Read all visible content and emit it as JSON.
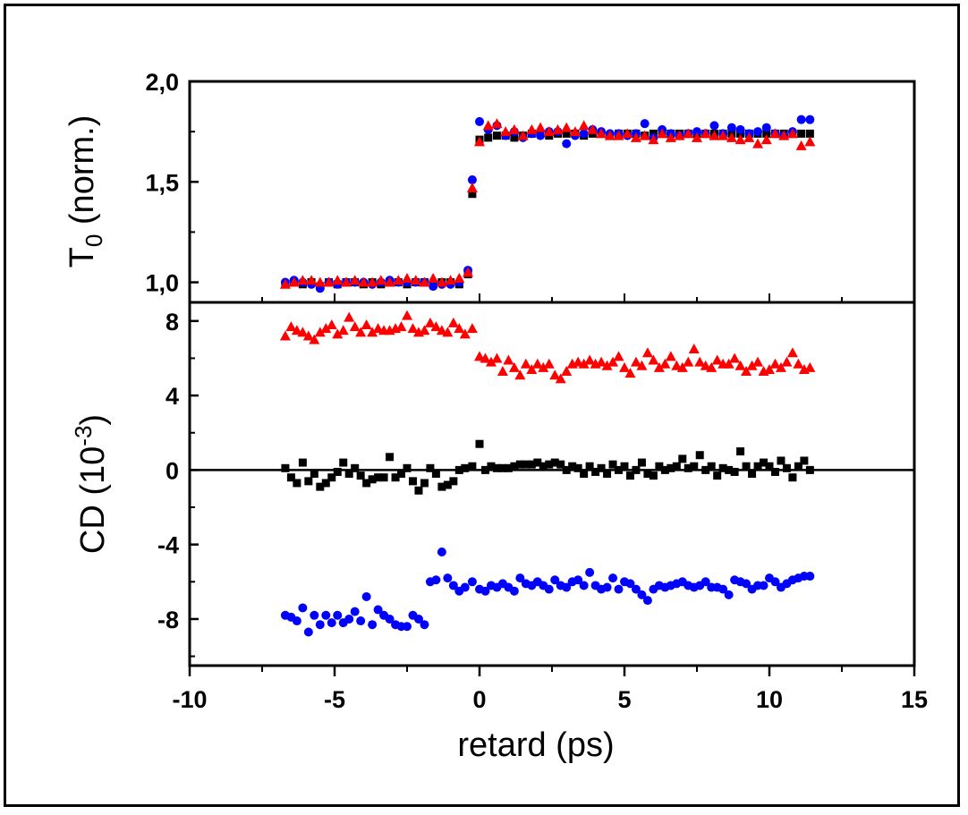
{
  "chart_data": [
    {
      "type": "scatter",
      "panel": "top",
      "ylabel": "T",
      "ylabel_sub": "0",
      "ylabel_rest": " (norm.)",
      "xlim": [
        -10,
        15
      ],
      "ylim": [
        0.9,
        2.0
      ],
      "yticks": [
        1.0,
        1.5,
        2.0
      ],
      "ytick_labels": [
        "1,0",
        "1,5",
        "2,0"
      ],
      "colors": {
        "black": "#000000",
        "blue": "#0000ff",
        "red": "#ff0000"
      },
      "series": [
        {
          "color": "#000000",
          "marker": "square",
          "x": [
            -6.7,
            -6.4,
            -6.1,
            -5.8,
            -5.5,
            -5.2,
            -4.9,
            -4.6,
            -4.3,
            -4.0,
            -3.7,
            -3.4,
            -3.1,
            -2.8,
            -2.5,
            -2.2,
            -1.9,
            -1.6,
            -1.3,
            -1.0,
            -0.7,
            -0.4,
            -0.25,
            0.0,
            0.3,
            0.6,
            0.9,
            1.2,
            1.5,
            1.8,
            2.1,
            2.4,
            2.7,
            3.0,
            3.3,
            3.6,
            3.9,
            4.2,
            4.5,
            4.8,
            5.1,
            5.4,
            5.7,
            6.0,
            6.3,
            6.6,
            6.9,
            7.2,
            7.5,
            7.8,
            8.1,
            8.4,
            8.7,
            9.0,
            9.3,
            9.6,
            9.9,
            10.2,
            10.5,
            10.8,
            11.1,
            11.4
          ],
          "y": [
            0.99,
            1.0,
            0.99,
            1.0,
            0.98,
            1.0,
            0.99,
            1.0,
            1.0,
            0.99,
            1.0,
            0.99,
            1.0,
            1.0,
            0.99,
            1.0,
            1.0,
            0.99,
            1.0,
            1.0,
            0.99,
            1.04,
            1.44,
            1.71,
            1.72,
            1.73,
            1.73,
            1.72,
            1.73,
            1.74,
            1.74,
            1.73,
            1.74,
            1.74,
            1.74,
            1.73,
            1.74,
            1.74,
            1.73,
            1.74,
            1.74,
            1.74,
            1.73,
            1.74,
            1.74,
            1.74,
            1.74,
            1.74,
            1.74,
            1.74,
            1.74,
            1.74,
            1.74,
            1.74,
            1.74,
            1.74,
            1.74,
            1.74,
            1.74,
            1.74,
            1.74,
            1.74
          ]
        },
        {
          "color": "#0000ff",
          "marker": "circle",
          "x": [
            -6.7,
            -6.4,
            -6.1,
            -5.8,
            -5.5,
            -5.2,
            -4.9,
            -4.6,
            -4.3,
            -4.0,
            -3.7,
            -3.4,
            -3.1,
            -2.8,
            -2.5,
            -2.2,
            -1.9,
            -1.6,
            -1.3,
            -1.0,
            -0.7,
            -0.4,
            -0.25,
            0.0,
            0.3,
            0.6,
            0.9,
            1.2,
            1.5,
            1.8,
            2.1,
            2.4,
            2.7,
            3.0,
            3.3,
            3.6,
            3.9,
            4.2,
            4.5,
            4.8,
            5.1,
            5.4,
            5.7,
            6.0,
            6.3,
            6.6,
            6.9,
            7.2,
            7.5,
            7.8,
            8.1,
            8.4,
            8.7,
            9.0,
            9.3,
            9.6,
            9.9,
            10.2,
            10.5,
            10.8,
            11.1,
            11.4
          ],
          "y": [
            1.0,
            1.01,
            1.0,
            0.99,
            0.97,
            1.0,
            0.99,
            1.0,
            1.0,
            1.0,
            0.99,
            1.0,
            1.01,
            1.0,
            1.0,
            1.0,
            1.0,
            0.98,
            0.99,
            0.99,
            1.0,
            1.06,
            1.51,
            1.8,
            1.76,
            1.78,
            1.73,
            1.75,
            1.72,
            1.74,
            1.73,
            1.75,
            1.75,
            1.69,
            1.73,
            1.74,
            1.76,
            1.75,
            1.74,
            1.74,
            1.73,
            1.74,
            1.79,
            1.72,
            1.76,
            1.74,
            1.73,
            1.74,
            1.75,
            1.74,
            1.78,
            1.74,
            1.77,
            1.76,
            1.74,
            1.75,
            1.77,
            1.74,
            1.73,
            1.75,
            1.81,
            1.81
          ]
        },
        {
          "color": "#ff0000",
          "marker": "triangle",
          "x": [
            -6.7,
            -6.4,
            -6.1,
            -5.8,
            -5.5,
            -5.2,
            -4.9,
            -4.6,
            -4.3,
            -4.0,
            -3.7,
            -3.4,
            -3.1,
            -2.8,
            -2.5,
            -2.2,
            -1.9,
            -1.6,
            -1.3,
            -1.0,
            -0.7,
            -0.4,
            -0.25,
            0.0,
            0.3,
            0.6,
            0.9,
            1.2,
            1.5,
            1.8,
            2.1,
            2.4,
            2.7,
            3.0,
            3.3,
            3.6,
            3.9,
            4.2,
            4.5,
            4.8,
            5.1,
            5.4,
            5.7,
            6.0,
            6.3,
            6.6,
            6.9,
            7.2,
            7.5,
            7.8,
            8.1,
            8.4,
            8.7,
            9.0,
            9.3,
            9.6,
            9.9,
            10.2,
            10.5,
            10.8,
            11.1,
            11.4
          ],
          "y": [
            0.99,
            1.0,
            1.01,
            1.01,
            1.0,
            1.0,
            1.01,
            1.0,
            1.01,
            1.0,
            1.0,
            1.01,
            1.0,
            1.01,
            1.02,
            1.01,
            1.0,
            1.02,
            1.0,
            1.01,
            1.02,
            1.05,
            1.47,
            1.7,
            1.78,
            1.79,
            1.75,
            1.76,
            1.73,
            1.76,
            1.77,
            1.75,
            1.76,
            1.77,
            1.75,
            1.78,
            1.76,
            1.74,
            1.73,
            1.73,
            1.74,
            1.72,
            1.73,
            1.71,
            1.74,
            1.72,
            1.73,
            1.74,
            1.72,
            1.74,
            1.73,
            1.73,
            1.72,
            1.71,
            1.72,
            1.69,
            1.71,
            1.74,
            1.73,
            1.74,
            1.68,
            1.7
          ]
        }
      ]
    },
    {
      "type": "scatter",
      "panel": "bottom",
      "ylabel": "CD (10",
      "ylabel_sup": "-3",
      "ylabel_end": ")",
      "xlabel": "retard (ps)",
      "xlim": [
        -10,
        15
      ],
      "ylim": [
        -10.5,
        9
      ],
      "xticks": [
        -10,
        -5,
        0,
        5,
        10,
        15
      ],
      "xtick_labels": [
        "-10",
        "-5",
        "0",
        "5",
        "10",
        "15"
      ],
      "yticks": [
        -8,
        -4,
        0,
        4,
        8
      ],
      "ytick_labels": [
        "-8",
        "-4",
        "0",
        "4",
        "8"
      ],
      "zero_line": true,
      "series": [
        {
          "color": "#ff0000",
          "marker": "triangle",
          "x": [
            -6.7,
            -6.5,
            -6.3,
            -6.1,
            -5.9,
            -5.7,
            -5.5,
            -5.3,
            -5.1,
            -4.9,
            -4.7,
            -4.5,
            -4.3,
            -4.1,
            -3.9,
            -3.7,
            -3.5,
            -3.3,
            -3.1,
            -2.9,
            -2.7,
            -2.5,
            -2.3,
            -2.1,
            -1.9,
            -1.7,
            -1.5,
            -1.3,
            -1.1,
            -0.9,
            -0.7,
            -0.5,
            -0.25,
            0.0,
            0.2,
            0.4,
            0.6,
            0.8,
            1.0,
            1.2,
            1.4,
            1.6,
            1.8,
            2.0,
            2.2,
            2.4,
            2.6,
            2.8,
            3.0,
            3.2,
            3.4,
            3.6,
            3.8,
            4.0,
            4.2,
            4.4,
            4.6,
            4.8,
            5.0,
            5.2,
            5.4,
            5.6,
            5.8,
            6.0,
            6.2,
            6.4,
            6.6,
            6.8,
            7.0,
            7.2,
            7.4,
            7.6,
            7.8,
            8.0,
            8.2,
            8.4,
            8.6,
            8.8,
            9.0,
            9.2,
            9.4,
            9.6,
            9.8,
            10.0,
            10.2,
            10.4,
            10.6,
            10.8,
            11.0,
            11.2,
            11.4
          ],
          "y": [
            7.2,
            7.7,
            7.5,
            7.4,
            7.2,
            7.0,
            7.4,
            7.6,
            7.8,
            7.3,
            7.5,
            8.2,
            7.7,
            7.4,
            7.8,
            7.4,
            7.6,
            7.5,
            7.5,
            7.6,
            7.7,
            8.3,
            7.6,
            7.4,
            7.5,
            7.9,
            7.7,
            7.5,
            7.4,
            7.9,
            7.6,
            7.3,
            7.6,
            6.1,
            6.0,
            5.8,
            6.0,
            5.3,
            5.9,
            5.5,
            5.1,
            5.7,
            5.4,
            5.7,
            5.5,
            5.7,
            5.1,
            4.9,
            5.3,
            5.7,
            5.8,
            5.7,
            5.9,
            5.7,
            5.8,
            5.6,
            5.8,
            6.1,
            5.5,
            5.2,
            5.8,
            5.6,
            6.3,
            5.9,
            5.5,
            5.7,
            6.1,
            5.6,
            5.5,
            5.8,
            6.5,
            5.8,
            5.6,
            5.5,
            5.9,
            5.7,
            5.7,
            6.0,
            5.6,
            5.3,
            5.6,
            5.8,
            5.3,
            5.4,
            5.7,
            5.5,
            5.8,
            6.3,
            5.7,
            5.4,
            5.5
          ]
        },
        {
          "color": "#000000",
          "marker": "square",
          "x": [
            -6.7,
            -6.5,
            -6.3,
            -6.1,
            -5.9,
            -5.7,
            -5.5,
            -5.3,
            -5.1,
            -4.9,
            -4.7,
            -4.5,
            -4.3,
            -4.1,
            -3.9,
            -3.7,
            -3.5,
            -3.3,
            -3.1,
            -2.9,
            -2.7,
            -2.5,
            -2.3,
            -2.1,
            -1.9,
            -1.7,
            -1.5,
            -1.3,
            -1.1,
            -0.9,
            -0.7,
            -0.5,
            -0.25,
            0.0,
            0.2,
            0.4,
            0.6,
            0.8,
            1.0,
            1.2,
            1.4,
            1.6,
            1.8,
            2.0,
            2.2,
            2.4,
            2.6,
            2.8,
            3.0,
            3.2,
            3.4,
            3.6,
            3.8,
            4.0,
            4.2,
            4.4,
            4.6,
            4.8,
            5.0,
            5.2,
            5.4,
            5.6,
            5.8,
            6.0,
            6.2,
            6.4,
            6.6,
            6.8,
            7.0,
            7.2,
            7.4,
            7.6,
            7.8,
            8.0,
            8.2,
            8.4,
            8.6,
            8.8,
            9.0,
            9.2,
            9.4,
            9.6,
            9.8,
            10.0,
            10.2,
            10.4,
            10.6,
            10.8,
            11.0,
            11.2,
            11.4
          ],
          "y": [
            0.1,
            -0.4,
            -0.7,
            0.4,
            -0.6,
            -0.2,
            -0.9,
            -0.7,
            -0.4,
            -0.1,
            0.4,
            -0.2,
            0.1,
            -0.3,
            -0.7,
            -0.5,
            -0.4,
            -0.4,
            0.7,
            -0.4,
            -0.2,
            0.1,
            -0.6,
            -1.1,
            -0.7,
            0.1,
            -0.2,
            -0.9,
            -0.8,
            -0.6,
            0.0,
            0.1,
            0.2,
            1.4,
            0.0,
            0.2,
            0.1,
            0.1,
            0.1,
            0.2,
            0.3,
            0.3,
            0.3,
            0.4,
            0.2,
            0.3,
            0.4,
            0.3,
            0.0,
            0.2,
            0.1,
            -0.2,
            0.2,
            -0.1,
            0.1,
            -0.2,
            0.3,
            0.0,
            0.2,
            -0.3,
            0.0,
            0.4,
            -0.2,
            -0.3,
            0.2,
            0.0,
            0.1,
            0.2,
            0.6,
            0.1,
            0.2,
            0.8,
            0.0,
            0.2,
            -0.3,
            0.1,
            0.0,
            -0.1,
            1.0,
            0.2,
            -0.2,
            0.2,
            0.4,
            0.2,
            -0.1,
            0.5,
            0.1,
            -0.4,
            0.2,
            0.5,
            0.0
          ]
        },
        {
          "color": "#0000ff",
          "marker": "circle",
          "x": [
            -6.7,
            -6.5,
            -6.3,
            -6.1,
            -5.9,
            -5.7,
            -5.5,
            -5.3,
            -5.1,
            -4.9,
            -4.7,
            -4.5,
            -4.3,
            -4.1,
            -3.9,
            -3.7,
            -3.5,
            -3.3,
            -3.1,
            -2.9,
            -2.7,
            -2.5,
            -2.3,
            -2.1,
            -1.9,
            -1.7,
            -1.5,
            -1.3,
            -1.1,
            -0.9,
            -0.7,
            -0.5,
            -0.25,
            0.0,
            0.2,
            0.4,
            0.6,
            0.8,
            1.0,
            1.2,
            1.4,
            1.6,
            1.8,
            2.0,
            2.2,
            2.4,
            2.6,
            2.8,
            3.0,
            3.2,
            3.4,
            3.6,
            3.8,
            4.0,
            4.2,
            4.4,
            4.6,
            4.8,
            5.0,
            5.2,
            5.4,
            5.6,
            5.8,
            6.0,
            6.2,
            6.4,
            6.6,
            6.8,
            7.0,
            7.2,
            7.4,
            7.6,
            7.8,
            8.0,
            8.2,
            8.4,
            8.6,
            8.8,
            9.0,
            9.2,
            9.4,
            9.6,
            9.8,
            10.0,
            10.2,
            10.4,
            10.6,
            10.8,
            11.0,
            11.2,
            11.4
          ],
          "y": [
            -7.8,
            -7.9,
            -8.1,
            -7.4,
            -8.7,
            -7.8,
            -8.3,
            -7.8,
            -8.2,
            -7.8,
            -8.2,
            -8.0,
            -7.6,
            -8.1,
            -6.8,
            -8.3,
            -7.5,
            -7.8,
            -8.0,
            -8.3,
            -8.4,
            -8.4,
            -7.8,
            -8.0,
            -8.3,
            -6.0,
            -5.9,
            -4.4,
            -5.8,
            -6.2,
            -6.5,
            -6.3,
            -6.0,
            -6.4,
            -6.5,
            -6.2,
            -6.3,
            -6.1,
            -6.3,
            -6.5,
            -5.8,
            -6.1,
            -6.2,
            -6.0,
            -6.2,
            -6.4,
            -5.9,
            -6.2,
            -6.3,
            -6.0,
            -5.9,
            -6.2,
            -5.5,
            -6.2,
            -6.4,
            -6.3,
            -5.8,
            -6.4,
            -6.0,
            -6.1,
            -6.4,
            -6.7,
            -7.0,
            -6.4,
            -6.2,
            -6.3,
            -6.2,
            -6.1,
            -6.0,
            -6.2,
            -6.3,
            -6.2,
            -6.0,
            -6.3,
            -6.3,
            -6.4,
            -6.7,
            -5.9,
            -6.0,
            -6.1,
            -6.4,
            -6.2,
            -6.2,
            -5.8,
            -6.0,
            -6.3,
            -6.1,
            -5.9,
            -5.8,
            -5.7,
            -5.7
          ]
        }
      ]
    }
  ]
}
